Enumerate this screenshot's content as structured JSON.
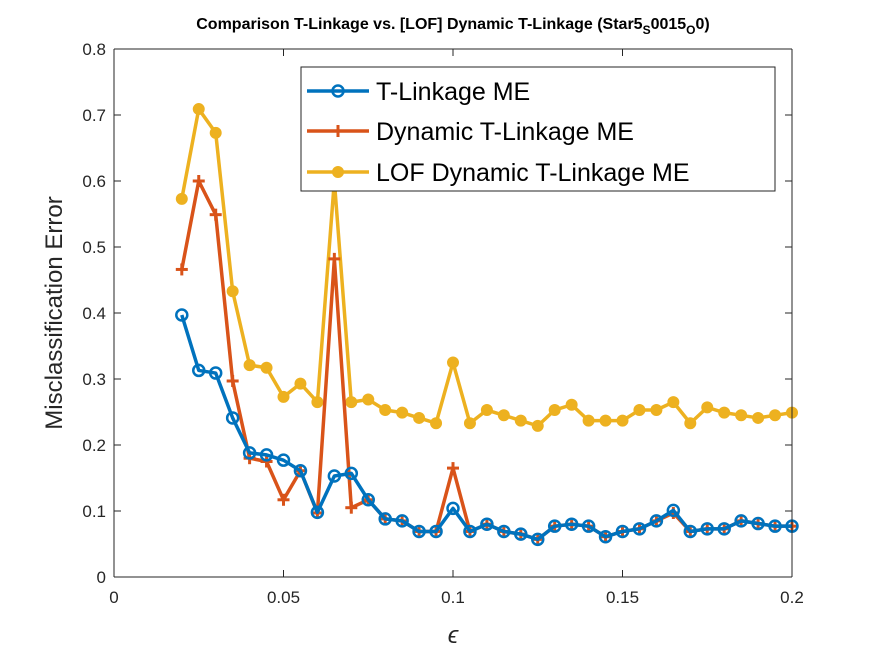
{
  "chart_data": {
    "type": "line",
    "title": {
      "prefix": "Comparison T-Linkage vs. [LOF] Dynamic T-Linkage (Star5",
      "sub1": "S",
      "mid": "0015",
      "sub2": "O",
      "suffix": "0)"
    },
    "xlabel": "ϵ",
    "ylabel": "Misclassification Error",
    "xlim": [
      0,
      0.2
    ],
    "ylim": [
      0,
      0.8
    ],
    "xticks": [
      "0",
      "0.05",
      "0.1",
      "0.15",
      "0.2"
    ],
    "yticks": [
      "0",
      "0.1",
      "0.2",
      "0.3",
      "0.4",
      "0.5",
      "0.6",
      "0.7",
      "0.8"
    ],
    "grid": false,
    "legend_position": "top-right",
    "x": [
      0.02,
      0.025,
      0.03,
      0.035,
      0.04,
      0.045,
      0.05,
      0.055,
      0.06,
      0.065,
      0.07,
      0.075,
      0.08,
      0.085,
      0.09,
      0.095,
      0.1,
      0.105,
      0.11,
      0.115,
      0.12,
      0.125,
      0.13,
      0.135,
      0.14,
      0.145,
      0.15,
      0.155,
      0.16,
      0.165,
      0.17,
      0.175,
      0.18,
      0.185,
      0.19,
      0.195,
      0.2
    ],
    "series": [
      {
        "name": "T-Linkage ME",
        "color": "#0072BD",
        "marker": "circle",
        "values": [
          0.397,
          0.313,
          0.309,
          0.241,
          0.188,
          0.185,
          0.177,
          0.161,
          0.098,
          0.153,
          0.157,
          0.117,
          0.088,
          0.085,
          0.069,
          0.069,
          0.104,
          0.069,
          0.08,
          0.069,
          0.065,
          0.057,
          0.077,
          0.08,
          0.077,
          0.061,
          0.069,
          0.073,
          0.085,
          0.101,
          0.069,
          0.073,
          0.073,
          0.085,
          0.081,
          0.077,
          0.077
        ]
      },
      {
        "name": "Dynamic T-Linkage ME",
        "color": "#D95319",
        "marker": "plus",
        "values": [
          0.466,
          0.6,
          0.549,
          0.297,
          0.18,
          0.175,
          0.117,
          0.161,
          0.097,
          0.482,
          0.105,
          0.117,
          0.088,
          0.085,
          0.069,
          0.069,
          0.165,
          0.069,
          0.08,
          0.069,
          0.065,
          0.057,
          0.077,
          0.08,
          0.077,
          0.061,
          0.069,
          0.073,
          0.085,
          0.097,
          0.069,
          0.073,
          0.073,
          0.085,
          0.081,
          0.077,
          0.077
        ]
      },
      {
        "name": "LOF Dynamic T-Linkage ME",
        "color": "#EDB120",
        "marker": "dot",
        "values": [
          0.573,
          0.709,
          0.673,
          0.433,
          0.321,
          0.317,
          0.273,
          0.293,
          0.265,
          0.6,
          0.265,
          0.269,
          0.253,
          0.249,
          0.241,
          0.233,
          0.325,
          0.233,
          0.253,
          0.245,
          0.237,
          0.229,
          0.253,
          0.261,
          0.237,
          0.237,
          0.237,
          0.253,
          0.253,
          0.265,
          0.233,
          0.257,
          0.249,
          0.245,
          0.241,
          0.245,
          0.249
        ]
      }
    ]
  }
}
